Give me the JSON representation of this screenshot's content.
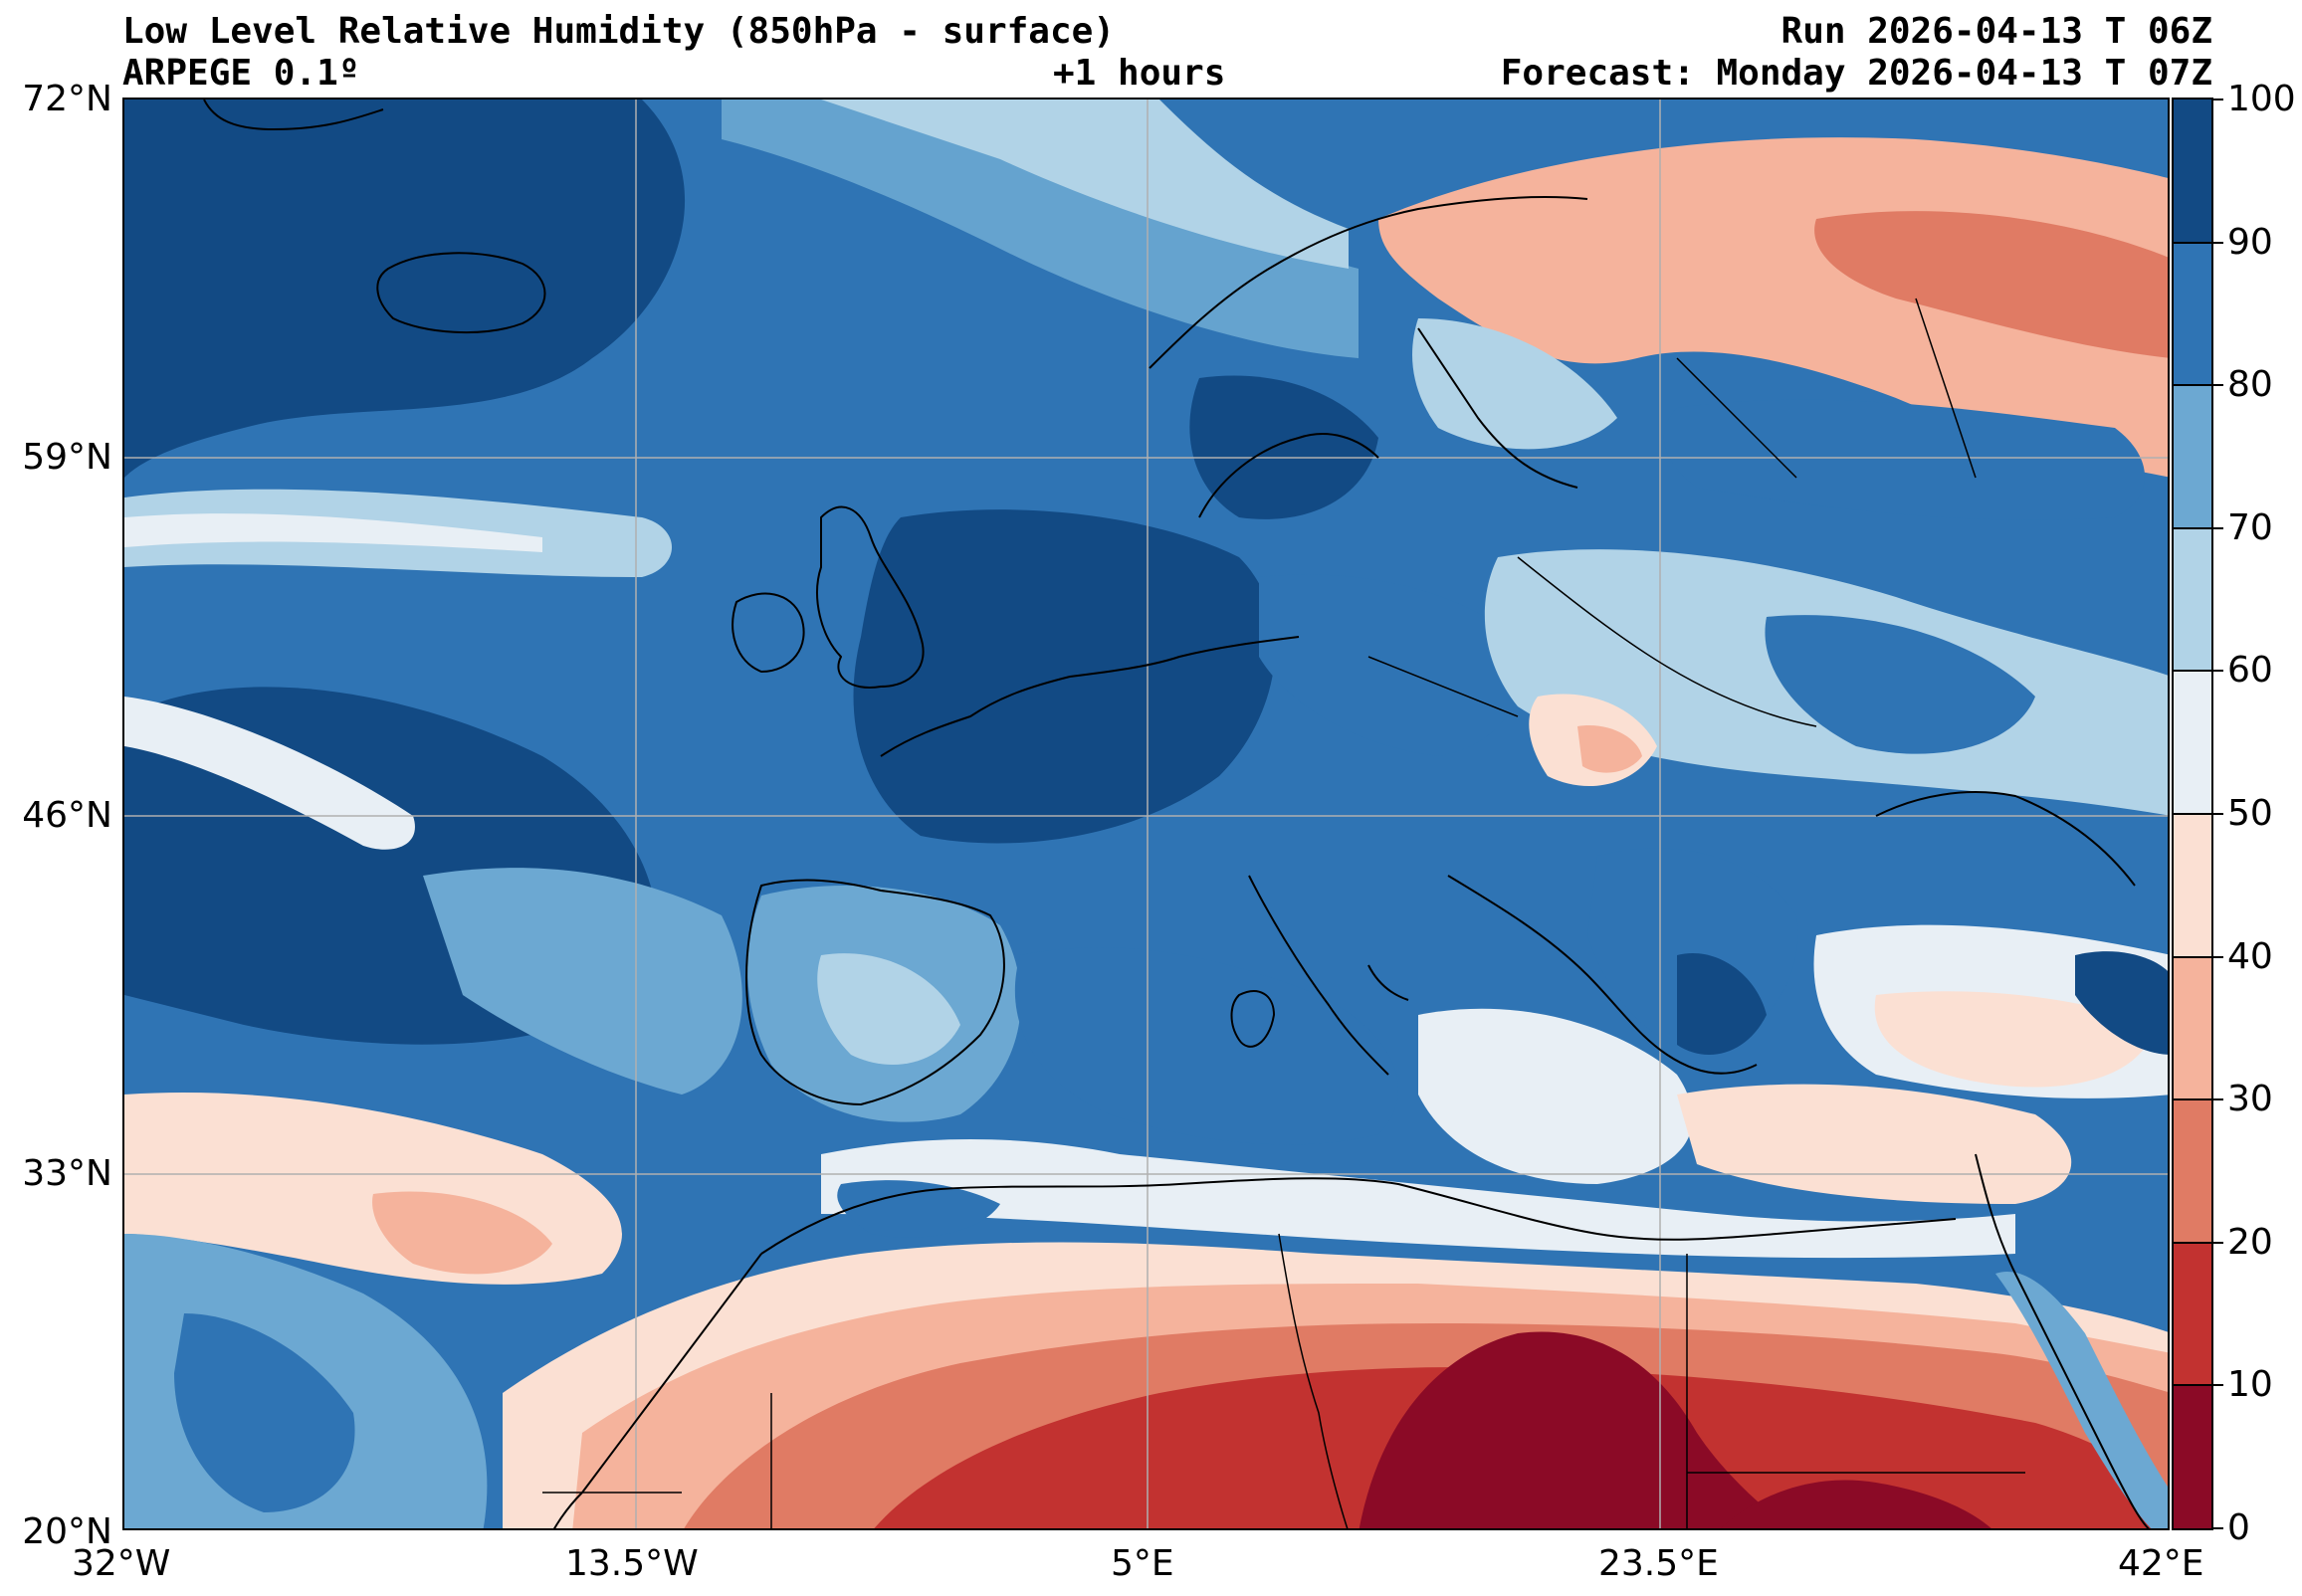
{
  "header": {
    "title": "Low Level Relative Humidity (850hPa - surface)",
    "run": "Run 2026-04-13 T 06Z",
    "model": "ARPEGE 0.1º",
    "lead": "+1 hours",
    "forecast": "Forecast: Monday 2026-04-13 T 07Z"
  },
  "axes": {
    "lat_labels": [
      "72°N",
      "59°N",
      "46°N",
      "33°N",
      "20°N"
    ],
    "lon_labels": [
      "32°W",
      "13.5°W",
      "5°E",
      "23.5°E",
      "42°E"
    ]
  },
  "colorbar": {
    "ticks": [
      "0",
      "10",
      "20",
      "30",
      "40",
      "50",
      "60",
      "70",
      "80",
      "90",
      "100"
    ],
    "colors": [
      "#8b0a26",
      "#c23230",
      "#e07b64",
      "#f5b39c",
      "#fbe0d3",
      "#e8eff5",
      "#b1d3e7",
      "#6ca8d2",
      "#2f74b4",
      "#124a84"
    ]
  },
  "map_colors": {
    "ocean_base": "#2f74b4",
    "grid": "#b0b0b0",
    "coast": "#000000"
  }
}
